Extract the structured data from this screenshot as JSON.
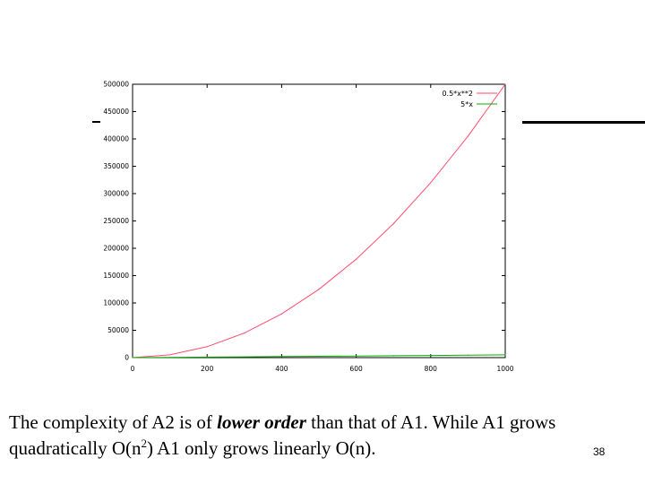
{
  "chart_data": {
    "type": "line",
    "title": "",
    "xlabel": "",
    "ylabel": "",
    "xlim": [
      0,
      1000
    ],
    "ylim": [
      0,
      500000
    ],
    "x_ticks": [
      0,
      200,
      400,
      600,
      800,
      1000
    ],
    "y_ticks": [
      0,
      50000,
      100000,
      150000,
      200000,
      250000,
      300000,
      350000,
      400000,
      450000,
      500000
    ],
    "grid": false,
    "legend_position": "top-right",
    "series": [
      {
        "name": "0.5*x**2",
        "color": "#ff4d6d",
        "formula": "0.5*x^2",
        "x": [
          0,
          100,
          200,
          300,
          400,
          500,
          600,
          700,
          800,
          900,
          1000
        ],
        "values": [
          0,
          5000,
          20000,
          45000,
          80000,
          125000,
          180000,
          245000,
          320000,
          405000,
          500000
        ]
      },
      {
        "name": "5*x",
        "color": "#00b000",
        "formula": "5*x",
        "x": [
          0,
          100,
          200,
          300,
          400,
          500,
          600,
          700,
          800,
          900,
          1000
        ],
        "values": [
          0,
          500,
          1000,
          1500,
          2000,
          2500,
          3000,
          3500,
          4000,
          4500,
          5000
        ]
      }
    ]
  },
  "caption": {
    "part1": "The complexity of A2 is of ",
    "emphasis": "lower order",
    "part2": " than that of A1. While A1 grows",
    "line2_part1": "quadratically O(n",
    "superscript": "2",
    "line2_part2": ") A1 only grows linearly  O(n)."
  },
  "slide_number": "38"
}
